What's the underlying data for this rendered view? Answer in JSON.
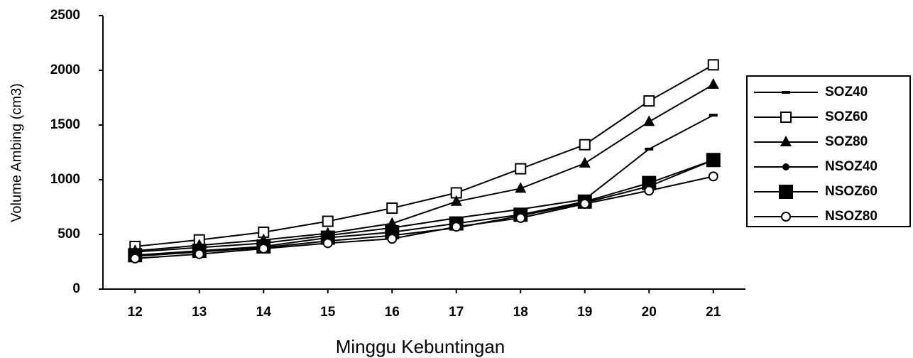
{
  "chart_data": {
    "type": "line",
    "x_label": "Minggu Kebuntingan",
    "y_label": "Volume Ambing (cm3)",
    "x": [
      12,
      13,
      14,
      15,
      16,
      17,
      18,
      19,
      20,
      21
    ],
    "xlim": [
      11.5,
      21.5
    ],
    "xticks": [
      12,
      13,
      14,
      15,
      16,
      17,
      18,
      19,
      20,
      21
    ],
    "ylim": [
      0,
      2500
    ],
    "yticks": [
      0,
      500,
      1000,
      1500,
      2000,
      2500
    ],
    "grid": false,
    "legend": "right",
    "series": [
      {
        "name": "SOZ40",
        "color": "#000000",
        "marker": "dash",
        "values": [
          340,
          380,
          420,
          490,
          560,
          650,
          730,
          820,
          1280,
          1590
        ]
      },
      {
        "name": "SOZ60",
        "color": "#000000",
        "marker": "square-open",
        "values": [
          390,
          450,
          520,
          620,
          740,
          880,
          1100,
          1320,
          1720,
          2050
        ]
      },
      {
        "name": "SOZ80",
        "color": "#000000",
        "marker": "triangle",
        "values": [
          350,
          400,
          450,
          510,
          600,
          800,
          920,
          1150,
          1530,
          1870
        ]
      },
      {
        "name": "NSOZ40",
        "color": "#000000",
        "marker": "circle",
        "values": [
          300,
          340,
          380,
          440,
          490,
          560,
          670,
          790,
          940,
          1180
        ]
      },
      {
        "name": "NSOZ60",
        "color": "#000000",
        "marker": "square",
        "values": [
          310,
          350,
          390,
          470,
          520,
          600,
          680,
          800,
          970,
          1180
        ]
      },
      {
        "name": "NSOZ80",
        "color": "#000000",
        "marker": "circle-open",
        "values": [
          280,
          320,
          370,
          420,
          460,
          570,
          650,
          780,
          900,
          1030
        ]
      }
    ]
  }
}
